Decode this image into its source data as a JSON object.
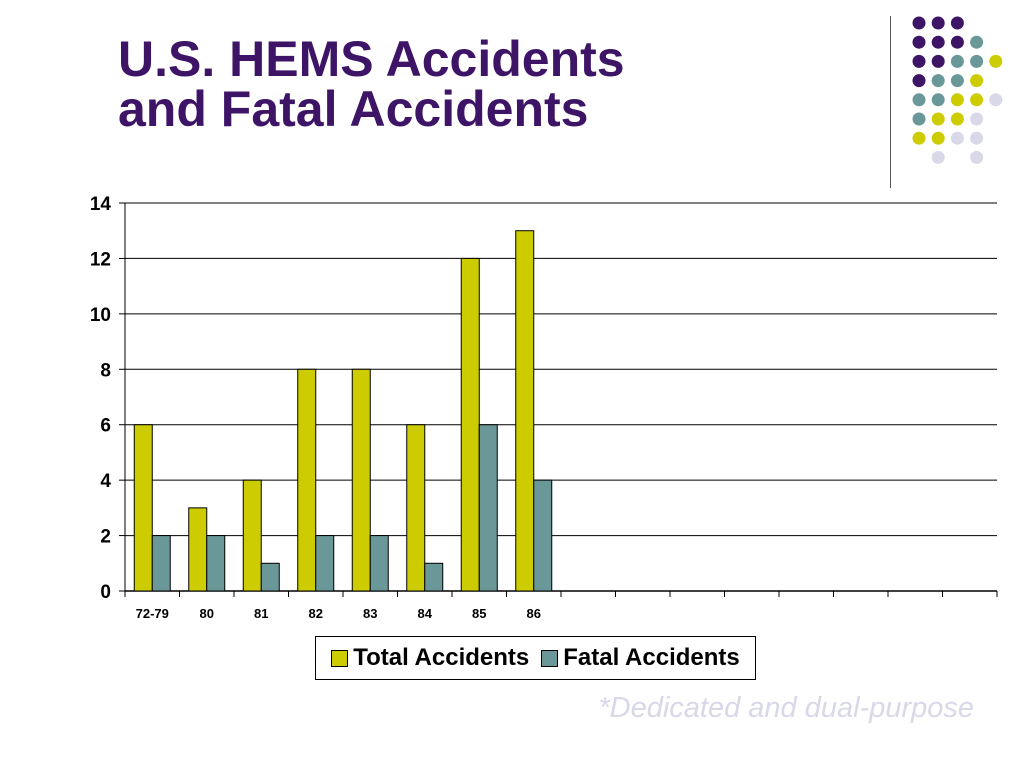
{
  "slide": {
    "title_line1": "U.S. HEMS Accidents",
    "title_line2": "and Fatal Accidents",
    "footnote": "*Dedicated and dual-purpose"
  },
  "colors": {
    "title": "#3d1466",
    "total": "#cccc00",
    "fatal": "#6a9899",
    "dot_purple": "#3d1466",
    "dot_teal": "#6a9899",
    "dot_yellow": "#cccc00",
    "dot_lavender": "#d8d8e8"
  },
  "decor_dots": [
    [
      "purple",
      "purple",
      "purple",
      null,
      null
    ],
    [
      "purple",
      "purple",
      "purple",
      "teal",
      null
    ],
    [
      "purple",
      "purple",
      "teal",
      "teal",
      "yellow"
    ],
    [
      "purple",
      "teal",
      "teal",
      "yellow",
      null
    ],
    [
      "teal",
      "teal",
      "yellow",
      "yellow",
      "lavender"
    ],
    [
      "teal",
      "yellow",
      "yellow",
      "lavender",
      null
    ],
    [
      "yellow",
      "yellow",
      "lavender",
      "lavender",
      null
    ],
    [
      null,
      "lavender",
      null,
      "lavender",
      null
    ]
  ],
  "chart_data": {
    "type": "bar",
    "categories": [
      "72-79",
      "80",
      "81",
      "82",
      "83",
      "84",
      "85",
      "86",
      "",
      "",
      "",
      "",
      "",
      "",
      "",
      ""
    ],
    "series": [
      {
        "name": "Total Accidents",
        "values": [
          6,
          3,
          4,
          8,
          8,
          6,
          12,
          13,
          null,
          null,
          null,
          null,
          null,
          null,
          null,
          null
        ]
      },
      {
        "name": "Fatal Accidents",
        "values": [
          2,
          2,
          1,
          2,
          2,
          1,
          6,
          4,
          null,
          null,
          null,
          null,
          null,
          null,
          null,
          null
        ]
      }
    ],
    "yticks": [
      0,
      2,
      4,
      6,
      8,
      10,
      12,
      14
    ],
    "ylim": [
      0,
      14
    ],
    "grid": true,
    "legend_position": "bottom"
  }
}
